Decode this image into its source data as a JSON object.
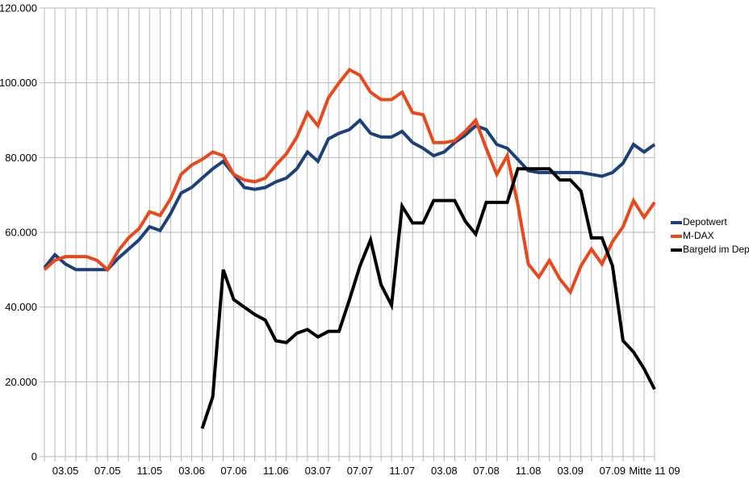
{
  "chart_data": {
    "type": "line",
    "title": "",
    "grid": true,
    "legend_position": "right",
    "x_axis": {
      "unit": "month",
      "first_month": "01.05",
      "last_month": "11.09",
      "points_total": 59,
      "tick_labels": [
        {
          "index": 2,
          "label": "03.05"
        },
        {
          "index": 6,
          "label": "07.05"
        },
        {
          "index": 10,
          "label": "11.05"
        },
        {
          "index": 14,
          "label": "03.06"
        },
        {
          "index": 18,
          "label": "07.06"
        },
        {
          "index": 22,
          "label": "11.06"
        },
        {
          "index": 26,
          "label": "03.07"
        },
        {
          "index": 30,
          "label": "07.07"
        },
        {
          "index": 34,
          "label": "11.07"
        },
        {
          "index": 38,
          "label": "03.08"
        },
        {
          "index": 42,
          "label": "07.08"
        },
        {
          "index": 46,
          "label": "11.08"
        },
        {
          "index": 50,
          "label": "03.09"
        },
        {
          "index": 54,
          "label": "07.09"
        },
        {
          "index": 58,
          "label": "Mitte 11 09"
        }
      ]
    },
    "y_axis": {
      "min": 0,
      "max": 120000,
      "tick_interval": 20000,
      "tick_labels": [
        "0",
        "20.000",
        "40.000",
        "60.000",
        "80.000",
        "100.000",
        "120.000"
      ]
    },
    "series": [
      {
        "name": "Depotwert",
        "color": "#1c4079",
        "values": [
          50500,
          54000,
          51500,
          50000,
          50000,
          50000,
          50000,
          53000,
          55500,
          58000,
          61500,
          60500,
          65000,
          70500,
          72000,
          74500,
          77000,
          79000,
          75500,
          72000,
          71500,
          72000,
          73500,
          74500,
          77000,
          81500,
          79000,
          85000,
          86500,
          87500,
          90000,
          86500,
          85500,
          85500,
          87000,
          84000,
          82500,
          80500,
          81500,
          84000,
          86000,
          88500,
          87500,
          83500,
          82500,
          79500,
          76500,
          76000,
          76000,
          76000,
          76000,
          76000,
          75500,
          75000,
          76000,
          78500,
          83500,
          81500,
          83500
        ]
      },
      {
        "name": "M-DAX",
        "color": "#e8481c",
        "values": [
          50000,
          52500,
          53500,
          53500,
          53500,
          52500,
          50000,
          55000,
          58500,
          61000,
          65500,
          64500,
          69000,
          75500,
          78000,
          79500,
          81500,
          80500,
          75500,
          74000,
          73500,
          74500,
          78000,
          81000,
          85500,
          92000,
          88500,
          96000,
          100000,
          103500,
          102000,
          97500,
          95500,
          95500,
          97500,
          92000,
          91500,
          84000,
          84000,
          84500,
          87000,
          90000,
          82500,
          75500,
          80500,
          67500,
          51500,
          48000,
          52500,
          47500,
          44000,
          51000,
          55500,
          51500,
          57500,
          61500,
          68500,
          64000,
          68000
        ]
      },
      {
        "name": "Bargeld im Depot",
        "color": "#000000",
        "values": [
          null,
          null,
          null,
          null,
          null,
          null,
          null,
          null,
          null,
          null,
          null,
          null,
          null,
          null,
          null,
          7500,
          16000,
          50000,
          42000,
          40000,
          38000,
          36500,
          31000,
          30500,
          33000,
          34000,
          32000,
          33500,
          33500,
          42000,
          51000,
          58000,
          46000,
          40500,
          67000,
          62500,
          62500,
          68500,
          68500,
          68500,
          63000,
          59500,
          68000,
          68000,
          68000,
          77000,
          77000,
          77000,
          77000,
          74000,
          74000,
          71000,
          58500,
          58500,
          51000,
          31000,
          28000,
          23500,
          18000
        ]
      }
    ],
    "style": {
      "grid_color": "#b9b9b9",
      "axis_color": "#b9b9b9",
      "text_color": "#000000",
      "background": "#ffffff",
      "line_width": 4
    }
  }
}
